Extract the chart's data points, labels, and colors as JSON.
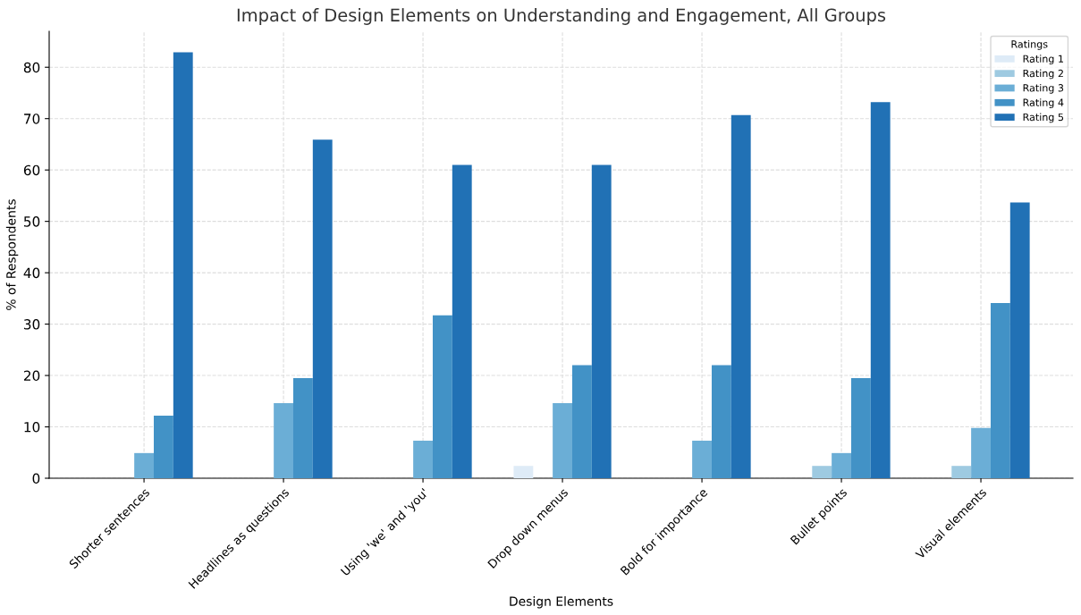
{
  "chart_data": {
    "type": "bar",
    "title": "Impact of Design Elements on Understanding and Engagement, All Groups",
    "xlabel": "Design Elements",
    "ylabel": "% of Respondents",
    "categories": [
      "Shorter sentences",
      "Headlines as questions",
      "Using 'we' and 'you'",
      "Drop down menus",
      "Bold for importance",
      "Bullet points",
      "Visual elements"
    ],
    "series": [
      {
        "name": "Rating 1",
        "color": "#deebf7",
        "values": [
          0,
          0,
          0,
          2.4,
          0,
          0,
          0
        ]
      },
      {
        "name": "Rating 2",
        "color": "#9ecae1",
        "values": [
          0,
          0,
          0,
          0,
          0,
          2.4,
          2.4
        ]
      },
      {
        "name": "Rating 3",
        "color": "#6baed6",
        "values": [
          4.9,
          14.6,
          7.3,
          14.6,
          7.3,
          4.9,
          9.8
        ]
      },
      {
        "name": "Rating 4",
        "color": "#4292c6",
        "values": [
          12.2,
          19.5,
          31.7,
          22.0,
          22.0,
          19.5,
          34.1
        ]
      },
      {
        "name": "Rating 5",
        "color": "#2171b5",
        "values": [
          82.9,
          65.9,
          61.0,
          61.0,
          70.7,
          73.2,
          53.7
        ]
      }
    ],
    "legend_title": "Ratings",
    "legend": "top right",
    "ylim": [
      0,
      87
    ],
    "yticks": [
      0,
      10,
      20,
      30,
      40,
      50,
      60,
      70,
      80
    ],
    "grid": true
  }
}
